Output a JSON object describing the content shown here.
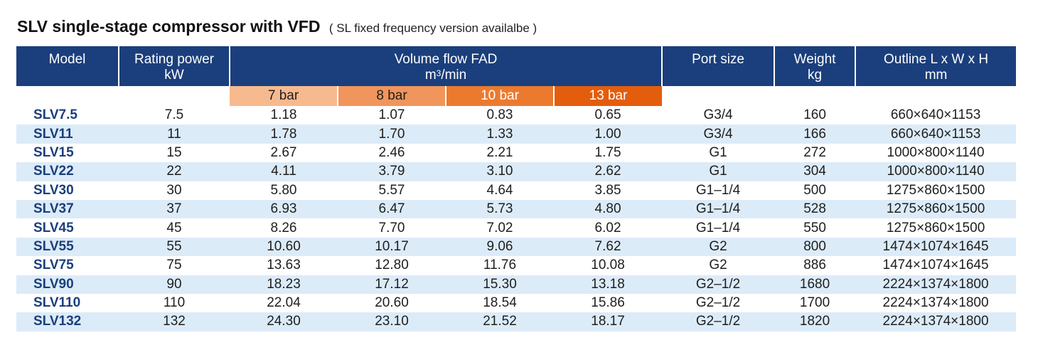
{
  "title": "SLV single-stage compressor with VFD",
  "subtitle": "( SL fixed frequency version availalbe )",
  "headers": {
    "model": "Model",
    "rating_line1": "Rating power",
    "rating_line2": "kW",
    "flow_line1": "Volume flow FAD",
    "flow_unit_m": "m",
    "flow_unit_sup": "3",
    "flow_unit_rest": "/min",
    "port": "Port size",
    "weight_line1": "Weight",
    "weight_line2": "kg",
    "outline_line1": "Outline L x W x H",
    "outline_line2": "mm"
  },
  "pressures": [
    "7 bar",
    "8 bar",
    "10 bar",
    "13 bar"
  ],
  "colors": {
    "header_bg": "#1b3f7c",
    "stripe": "#dcebf8",
    "p7": "#f7b98e",
    "p8": "#f0955c",
    "p10": "#ec7a2e",
    "p13": "#e35d0c"
  },
  "rows": [
    [
      "SLV7.5",
      "7.5",
      "1.18",
      "1.07",
      "0.83",
      "0.65",
      "G3/4",
      "160",
      "660×640×1153"
    ],
    [
      "SLV11",
      "11",
      "1.78",
      "1.70",
      "1.33",
      "1.00",
      "G3/4",
      "166",
      "660×640×1153"
    ],
    [
      "SLV15",
      "15",
      "2.67",
      "2.46",
      "2.21",
      "1.75",
      "G1",
      "272",
      "1000×800×1140"
    ],
    [
      "SLV22",
      "22",
      "4.11",
      "3.79",
      "3.10",
      "2.62",
      "G1",
      "304",
      "1000×800×1140"
    ],
    [
      "SLV30",
      "30",
      "5.80",
      "5.57",
      "4.64",
      "3.85",
      "G1–1/4",
      "500",
      "1275×860×1500"
    ],
    [
      "SLV37",
      "37",
      "6.93",
      "6.47",
      "5.73",
      "4.80",
      "G1–1/4",
      "528",
      "1275×860×1500"
    ],
    [
      "SLV45",
      "45",
      "8.26",
      "7.70",
      "7.02",
      "6.02",
      "G1–1/4",
      "550",
      "1275×860×1500"
    ],
    [
      "SLV55",
      "55",
      "10.60",
      "10.17",
      "9.06",
      "7.62",
      "G2",
      "800",
      "1474×1074×1645"
    ],
    [
      "SLV75",
      "75",
      "13.63",
      "12.80",
      "11.76",
      "10.08",
      "G2",
      "886",
      "1474×1074×1645"
    ],
    [
      "SLV90",
      "90",
      "18.23",
      "17.12",
      "15.30",
      "13.18",
      "G2–1/2",
      "1680",
      "2224×1374×1800"
    ],
    [
      "SLV110",
      "110",
      "22.04",
      "20.60",
      "18.54",
      "15.86",
      "G2–1/2",
      "1700",
      "2224×1374×1800"
    ],
    [
      "SLV132",
      "132",
      "24.30",
      "23.10",
      "21.52",
      "18.17",
      "G2–1/2",
      "1820",
      "2224×1374×1800"
    ]
  ]
}
